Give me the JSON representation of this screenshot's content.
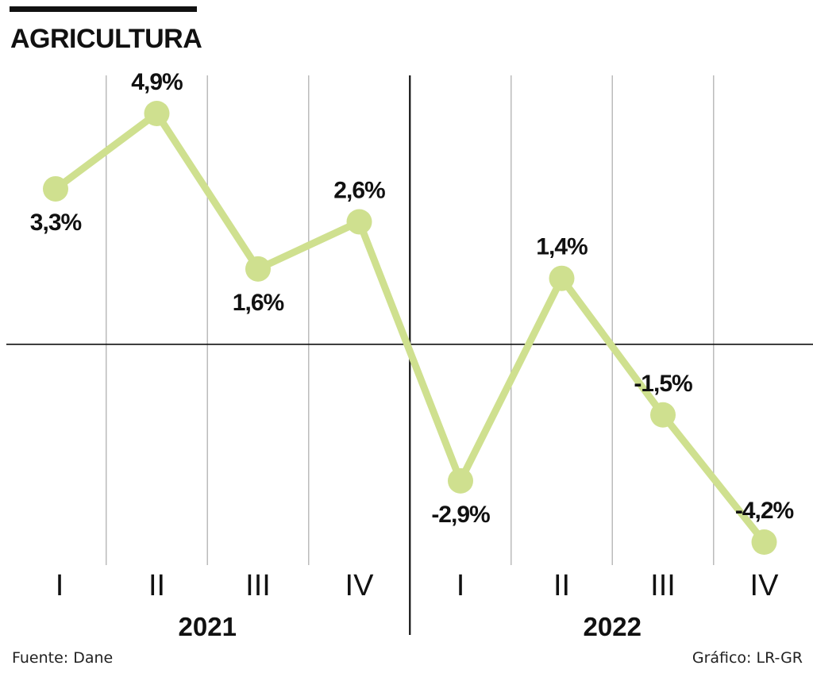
{
  "title": "AGRICULTURA",
  "footer": {
    "source": "Fuente: Dane",
    "credit": "Gráfico: LR-GR"
  },
  "colors": {
    "line": "#cfe08f",
    "axis": "#111111",
    "grid": "#bbbbbb",
    "text": "#111111"
  },
  "chart_data": {
    "type": "line",
    "title": "AGRICULTURA",
    "categories": [
      "I",
      "II",
      "III",
      "IV",
      "I",
      "II",
      "III",
      "IV"
    ],
    "groups": [
      {
        "label": "2021",
        "start": 0,
        "end": 3
      },
      {
        "label": "2022",
        "start": 4,
        "end": 7
      }
    ],
    "series": [
      {
        "values": [
          3.3,
          4.9,
          1.6,
          2.6,
          -2.9,
          1.4,
          -1.5,
          -4.2
        ],
        "labels": [
          "3,3%",
          "4,9%",
          "1,6%",
          "2,6%",
          "-2,9%",
          "1,4%",
          "-1,5%",
          "-4,2%"
        ]
      }
    ],
    "label_positions": [
      "below",
      "above",
      "below",
      "above",
      "below",
      "above",
      "above",
      "above"
    ],
    "ylim": [
      -4.2,
      4.9
    ],
    "zero_line": true,
    "grid": "vertical"
  }
}
